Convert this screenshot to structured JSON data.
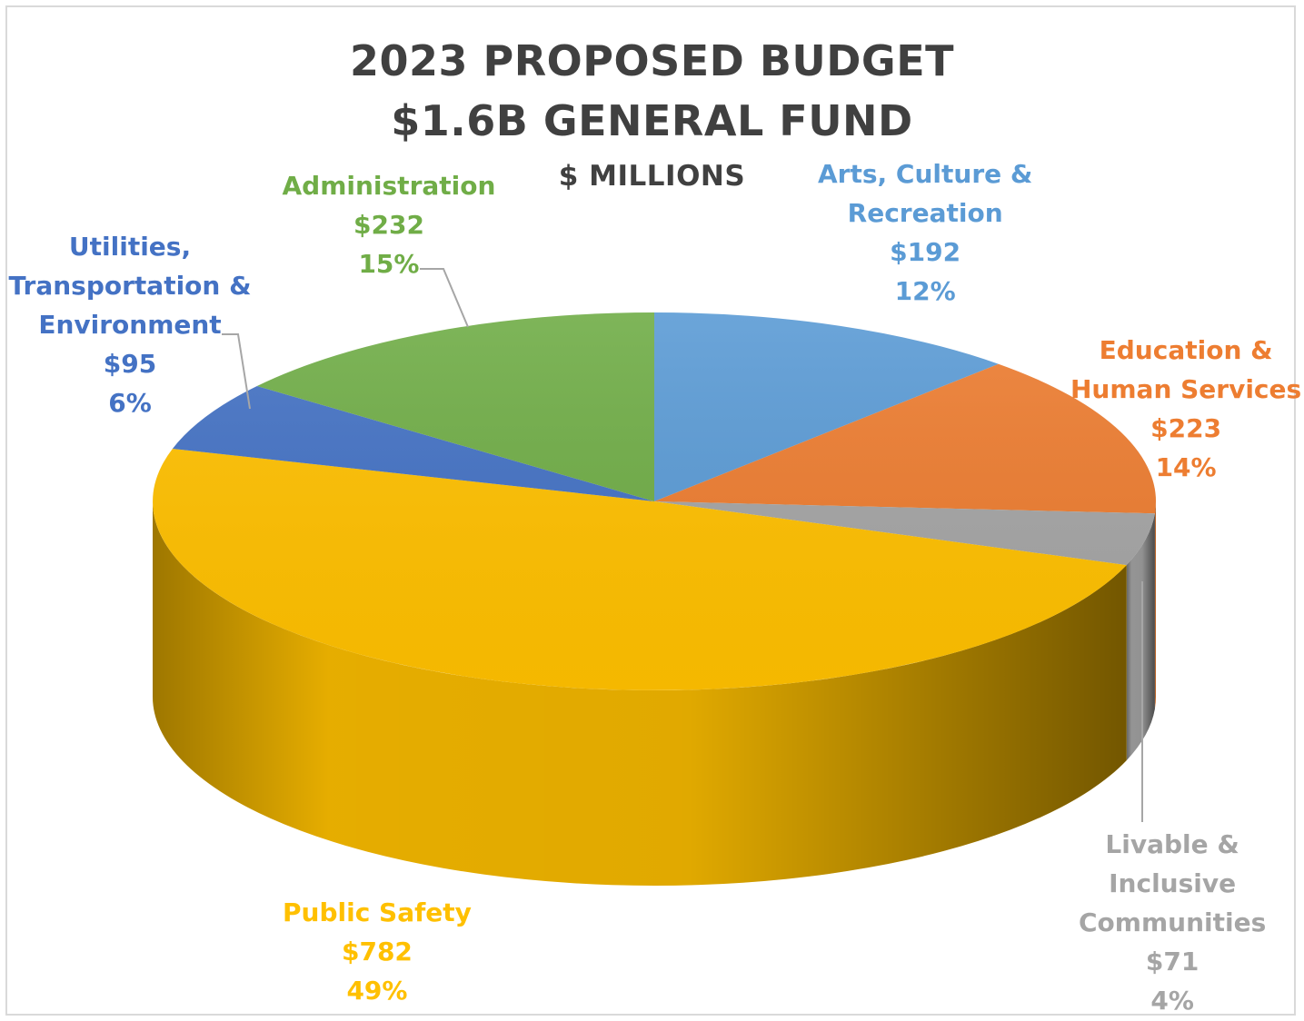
{
  "chart_data": {
    "type": "pie",
    "title": "2023 PROPOSED BUDGET",
    "subtitle": "$1.6B GENERAL FUND",
    "unit_label": "$ MILLIONS",
    "slices": [
      {
        "name_lines": [
          "Arts, Culture &",
          "Recreation"
        ],
        "value": 192,
        "value_label": "$192",
        "percent_label": "12%",
        "color": "#5b9bd5"
      },
      {
        "name_lines": [
          "Education &",
          "Human Services"
        ],
        "value": 223,
        "value_label": "$223",
        "percent_label": "14%",
        "color": "#ed7d31"
      },
      {
        "name_lines": [
          "Livable &",
          "Inclusive",
          "Communities"
        ],
        "value": 71,
        "value_label": "$71",
        "percent_label": "4%",
        "color": "#a5a5a5"
      },
      {
        "name_lines": [
          "Public Safety"
        ],
        "value": 782,
        "value_label": "$782",
        "percent_label": "49%",
        "color": "#ffc000"
      },
      {
        "name_lines": [
          "Utilities,",
          "Transportation  &",
          "Environment"
        ],
        "value": 95,
        "value_label": "$95",
        "percent_label": "6%",
        "color": "#4472c4"
      },
      {
        "name_lines": [
          "Administration"
        ],
        "value": 232,
        "value_label": "$232",
        "percent_label": "15%",
        "color": "#70ad47"
      }
    ]
  }
}
